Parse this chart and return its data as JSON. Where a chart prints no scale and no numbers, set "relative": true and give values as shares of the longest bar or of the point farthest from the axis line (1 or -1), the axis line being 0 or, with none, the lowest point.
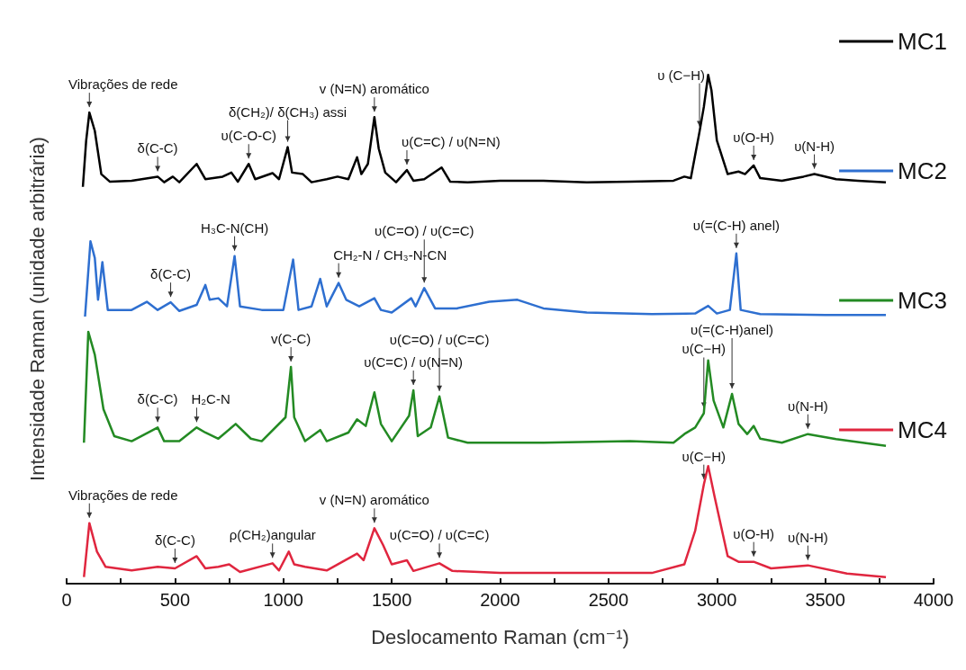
{
  "chart_data": {
    "type": "line",
    "relative": true,
    "xlabel": "Deslocamento Raman (cm⁻¹)",
    "ylabel": "Intensidade Raman (unidade arbitrária)",
    "xlim": [
      0,
      4000
    ],
    "xticks": [
      0,
      {
        "value": 250,
        "label": null
      },
      500,
      {
        "value": 750,
        "label": null
      },
      1000,
      {
        "value": 1250,
        "label": null
      },
      1500,
      {
        "value": 1750,
        "label": null
      },
      2000,
      {
        "value": 2250,
        "label": null
      },
      2500,
      {
        "value": 2750,
        "label": null
      },
      3000,
      {
        "value": 3250,
        "label": null
      },
      3500,
      {
        "value": 3750,
        "label": null
      },
      4000
    ],
    "legend": "top right",
    "series": [
      {
        "name": "MC1",
        "color": "#000000",
        "x": [
          75,
          90,
          105,
          130,
          160,
          200,
          300,
          420,
          450,
          490,
          520,
          600,
          640,
          720,
          760,
          790,
          840,
          870,
          950,
          980,
          1020,
          1040,
          1090,
          1130,
          1200,
          1250,
          1300,
          1340,
          1360,
          1390,
          1420,
          1440,
          1470,
          1520,
          1570,
          1600,
          1650,
          1730,
          1770,
          1850,
          2000,
          2200,
          2400,
          2600,
          2800,
          2850,
          2880,
          2920,
          2940,
          2960,
          2975,
          3000,
          3050,
          3100,
          3130,
          3170,
          3200,
          3300,
          3400,
          3450,
          3550,
          3650,
          3780
        ],
        "values": [
          0.78,
          0.87,
          0.926,
          0.89,
          0.805,
          0.79,
          0.792,
          0.8,
          0.789,
          0.8,
          0.789,
          0.825,
          0.795,
          0.8,
          0.808,
          0.79,
          0.825,
          0.795,
          0.807,
          0.795,
          0.858,
          0.808,
          0.805,
          0.789,
          0.795,
          0.8,
          0.795,
          0.838,
          0.805,
          0.825,
          0.917,
          0.855,
          0.808,
          0.789,
          0.813,
          0.792,
          0.795,
          0.818,
          0.79,
          0.789,
          0.792,
          0.792,
          0.789,
          0.79,
          0.792,
          0.8,
          0.797,
          0.888,
          0.937,
          1.0,
          0.97,
          0.871,
          0.805,
          0.81,
          0.805,
          0.822,
          0.797,
          0.792,
          0.8,
          0.805,
          0.795,
          0.792,
          0.789
        ]
      },
      {
        "name": "MC2",
        "color": "#2e6fd0",
        "x": [
          85,
          110,
          130,
          145,
          165,
          190,
          300,
          370,
          420,
          480,
          520,
          600,
          640,
          660,
          700,
          740,
          775,
          800,
          900,
          1000,
          1045,
          1070,
          1130,
          1170,
          1200,
          1255,
          1290,
          1350,
          1420,
          1450,
          1500,
          1590,
          1610,
          1650,
          1700,
          1800,
          1950,
          2080,
          2200,
          2400,
          2700,
          2900,
          2960,
          3000,
          3060,
          3090,
          3110,
          3200,
          3500,
          3780
        ],
        "values": [
          0.525,
          0.673,
          0.64,
          0.558,
          0.632,
          0.538,
          0.538,
          0.554,
          0.538,
          0.553,
          0.536,
          0.548,
          0.587,
          0.558,
          0.561,
          0.545,
          0.644,
          0.545,
          0.538,
          0.538,
          0.637,
          0.538,
          0.545,
          0.599,
          0.545,
          0.591,
          0.558,
          0.545,
          0.561,
          0.538,
          0.533,
          0.561,
          0.545,
          0.581,
          0.541,
          0.541,
          0.554,
          0.558,
          0.541,
          0.533,
          0.53,
          0.531,
          0.546,
          0.531,
          0.538,
          0.649,
          0.538,
          0.53,
          0.528,
          0.528
        ]
      },
      {
        "name": "MC3",
        "color": "#238a23",
        "x": [
          80,
          100,
          130,
          170,
          220,
          300,
          420,
          450,
          520,
          600,
          640,
          700,
          780,
          850,
          900,
          1010,
          1035,
          1050,
          1100,
          1170,
          1200,
          1300,
          1340,
          1380,
          1420,
          1450,
          1500,
          1580,
          1600,
          1620,
          1680,
          1720,
          1760,
          1850,
          2200,
          2600,
          2800,
          2850,
          2900,
          2940,
          2960,
          2985,
          3030,
          3070,
          3100,
          3140,
          3170,
          3200,
          3300,
          3420,
          3550,
          3780
        ],
        "values": [
          0.277,
          0.495,
          0.45,
          0.343,
          0.29,
          0.28,
          0.307,
          0.28,
          0.28,
          0.307,
          0.297,
          0.285,
          0.314,
          0.285,
          0.28,
          0.327,
          0.426,
          0.327,
          0.28,
          0.302,
          0.28,
          0.297,
          0.323,
          0.31,
          0.376,
          0.314,
          0.28,
          0.33,
          0.38,
          0.29,
          0.307,
          0.368,
          0.287,
          0.277,
          0.277,
          0.28,
          0.277,
          0.294,
          0.307,
          0.335,
          0.439,
          0.36,
          0.307,
          0.373,
          0.314,
          0.294,
          0.31,
          0.285,
          0.277,
          0.294,
          0.284,
          0.271
        ]
      },
      {
        "name": "MC4",
        "color": "#e0263f",
        "x": [
          80,
          105,
          140,
          180,
          300,
          420,
          500,
          600,
          640,
          700,
          750,
          800,
          950,
          980,
          1025,
          1050,
          1100,
          1200,
          1340,
          1370,
          1420,
          1460,
          1500,
          1570,
          1600,
          1720,
          1780,
          2000,
          2400,
          2700,
          2850,
          2900,
          2940,
          2960,
          2990,
          3050,
          3100,
          3170,
          3250,
          3420,
          3600,
          3780
        ],
        "values": [
          0.013,
          0.119,
          0.063,
          0.033,
          0.026,
          0.033,
          0.03,
          0.054,
          0.03,
          0.033,
          0.038,
          0.023,
          0.04,
          0.026,
          0.063,
          0.038,
          0.033,
          0.026,
          0.059,
          0.046,
          0.109,
          0.076,
          0.038,
          0.046,
          0.025,
          0.04,
          0.025,
          0.021,
          0.021,
          0.021,
          0.038,
          0.104,
          0.195,
          0.231,
          0.17,
          0.054,
          0.043,
          0.043,
          0.03,
          0.036,
          0.02,
          0.013
        ]
      }
    ],
    "annotations": [
      {
        "text": "Vibrações de rede",
        "x": 105,
        "y": 0.926
      },
      {
        "text": "δ(C-C)",
        "x": 420,
        "y": 0.8
      },
      {
        "text": "υ(C-O-C)",
        "x": 840,
        "y": 0.825
      },
      {
        "text": "δ(CH₂)/ δ(CH₃) assi",
        "x": 1020,
        "y": 0.858
      },
      {
        "text": "v (N=N) aromático",
        "x": 1420,
        "y": 0.917
      },
      {
        "text": "υ(C=C) / υ(N=N)",
        "x": 1570,
        "y": 0.813
      },
      {
        "text": "υ (C−H)",
        "x": 2920,
        "y": 0.888
      },
      {
        "text": "υ(O-H)",
        "x": 3170,
        "y": 0.822
      },
      {
        "text": "υ(N-H)",
        "x": 3450,
        "y": 0.805
      },
      {
        "text": "H₃C-N(CH)",
        "x": 775,
        "y": 0.644
      },
      {
        "text": "δ(C-C)",
        "x": 480,
        "y": 0.553
      },
      {
        "text": "CH₂-N / CH₃-N-CN",
        "x": 1255,
        "y": 0.591
      },
      {
        "text": "υ(C=O) / υ(C=C)",
        "x": 1650,
        "y": 0.581
      },
      {
        "text": "υ(=(C-H) anel)",
        "x": 3090,
        "y": 0.649
      },
      {
        "text": "δ(C-C)",
        "x": 420,
        "y": 0.307
      },
      {
        "text": "H₂C-N",
        "x": 600,
        "y": 0.307
      },
      {
        "text": "v(C-C)",
        "x": 1035,
        "y": 0.426
      },
      {
        "text": "υ(C=C) / υ(N=N)",
        "x": 1600,
        "y": 0.38
      },
      {
        "text": "υ(C=O) / υ(C=C)",
        "x": 1720,
        "y": 0.368
      },
      {
        "text": "υ(C−H)",
        "x": 2940,
        "y": 0.335
      },
      {
        "text": "υ(=(C-H)anel)",
        "x": 3070,
        "y": 0.373
      },
      {
        "text": "υ(N-H)",
        "x": 3420,
        "y": 0.294
      },
      {
        "text": "Vibrações de rede",
        "x": 105,
        "y": 0.119
      },
      {
        "text": "δ(C-C)",
        "x": 500,
        "y": 0.03
      },
      {
        "text": "ρ(CH₂)angular",
        "x": 950,
        "y": 0.04
      },
      {
        "text": "v (N=N) aromático",
        "x": 1420,
        "y": 0.109
      },
      {
        "text": "υ(C=O) / υ(C=C)",
        "x": 1720,
        "y": 0.04
      },
      {
        "text": "υ(C−H)",
        "x": 2940,
        "y": 0.195
      },
      {
        "text": "υ(O-H)",
        "x": 3170,
        "y": 0.043
      },
      {
        "text": "υ(N-H)",
        "x": 3420,
        "y": 0.036
      }
    ]
  }
}
